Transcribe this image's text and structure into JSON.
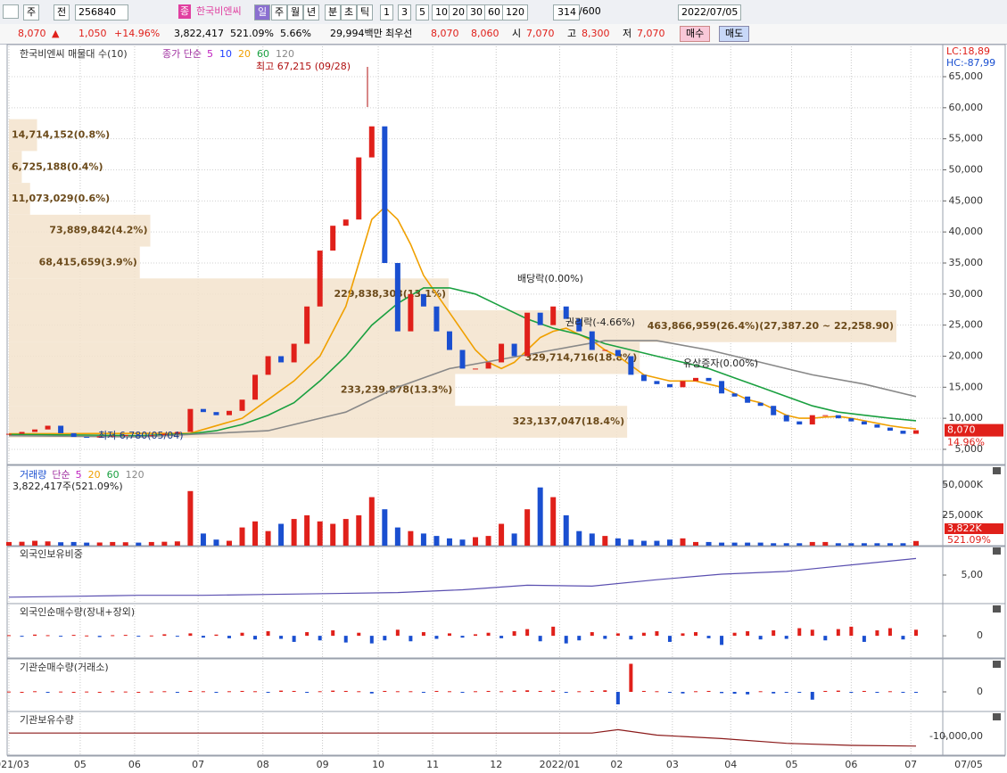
{
  "toolbar": {
    "market": "주",
    "prev": "전",
    "code": "256840",
    "jong": "종",
    "name": "한국비엔씨",
    "periods": [
      "일",
      "주",
      "월",
      "년",
      "분",
      "초",
      "틱"
    ],
    "intervals": [
      "1",
      "3",
      "5",
      "10",
      "20",
      "30",
      "60",
      "120"
    ],
    "count": "314",
    "max": "/600",
    "date": "2022/07/05"
  },
  "quote": {
    "price": "8,070",
    "arrow": "▲",
    "change": "1,050",
    "rate": "+14.96%",
    "volume": "3,822,417",
    "vol_ratio": "521.09%",
    "turnover": "5.66%",
    "amount": "29,994백만",
    "best": "최우선",
    "ask": "8,070",
    "bid": "8,060",
    "open_label": "시",
    "open": "7,070",
    "high_label": "고",
    "high": "8,300",
    "low_label": "저",
    "low": "7,070",
    "buy": "매수",
    "sell": "매도"
  },
  "chart_data": [
    {
      "type": "candlestick",
      "title": "한국비엔씨 매물대 수(10)",
      "legend_title": "종가 단순",
      "color_up": "#e0201a",
      "color_down": "#1a4fd0",
      "grid": true,
      "lc": "LC:18,89",
      "hc": "HC:-87,99",
      "last_label": "8,070",
      "last_rate": "14.96%",
      "values": [
        7500,
        7800,
        8200,
        8800,
        7600,
        7000,
        6900,
        7100,
        7200,
        7300,
        7200,
        7300,
        7500,
        7800,
        11500,
        11000,
        10500,
        11200,
        13000,
        17000,
        20000,
        19000,
        22000,
        28000,
        37000,
        41000,
        42000,
        52000,
        57000,
        35000,
        24000,
        30000,
        28000,
        24000,
        21000,
        18000,
        18000,
        19000,
        22000,
        20000,
        27000,
        25000,
        28000,
        26000,
        24000,
        21000,
        21000,
        20000,
        17000,
        16000,
        15500,
        15000,
        16000,
        16500,
        16000,
        14000,
        13500,
        12500,
        12000,
        10500,
        9500,
        9000,
        10500,
        10500,
        10000,
        9500,
        9000,
        8500,
        8000,
        7500,
        8070
      ],
      "ma_series": [
        {
          "name": "5",
          "color": "#c020c0"
        },
        {
          "name": "10",
          "color": "#2040ff"
        },
        {
          "name": "20",
          "color": "#f0a000",
          "x": [
            0,
            14,
            18,
            20,
            22,
            24,
            26,
            27,
            28,
            29,
            30,
            31,
            32,
            33,
            34,
            35,
            36,
            37,
            38,
            39,
            40,
            41,
            42,
            43,
            44,
            45,
            46,
            47,
            48,
            49,
            50,
            51,
            52,
            53,
            54,
            55,
            56,
            57,
            58,
            59,
            60,
            61,
            62,
            63,
            64,
            65,
            66,
            67,
            68,
            69,
            70
          ],
          "values": [
            7500,
            7600,
            10000,
            13000,
            16000,
            20000,
            28000,
            35000,
            42000,
            44000,
            42000,
            38000,
            33000,
            30000,
            27000,
            24000,
            21000,
            19000,
            18000,
            19000,
            21000,
            23000,
            24000,
            24500,
            23500,
            22500,
            21000,
            20000,
            18500,
            17000,
            16500,
            16000,
            16000,
            16000,
            15500,
            15000,
            14000,
            13000,
            12500,
            11500,
            10500,
            10000,
            10000,
            10200,
            10300,
            10000,
            9600,
            9200,
            8800,
            8500,
            8300
          ]
        },
        {
          "name": "60",
          "color": "#1aa040",
          "x": [
            0,
            6,
            10,
            14,
            16,
            18,
            20,
            22,
            24,
            26,
            28,
            30,
            32,
            34,
            36,
            38,
            40,
            42,
            44,
            46,
            48,
            50,
            52,
            54,
            56,
            58,
            60,
            62,
            64,
            66,
            68,
            70
          ],
          "values": [
            7400,
            7300,
            7200,
            7500,
            8000,
            9000,
            10500,
            12500,
            16000,
            20000,
            25000,
            28500,
            31000,
            31000,
            30000,
            28000,
            26000,
            24500,
            23500,
            22000,
            21000,
            20000,
            19000,
            18000,
            16500,
            15000,
            13500,
            12000,
            11000,
            10500,
            10000,
            9600
          ]
        },
        {
          "name": "120",
          "color": "#888888",
          "x": [
            0,
            10,
            20,
            26,
            30,
            34,
            38,
            42,
            46,
            50,
            54,
            58,
            62,
            66,
            70
          ],
          "values": [
            7200,
            7000,
            8000,
            11000,
            15000,
            18000,
            19500,
            21000,
            22500,
            22500,
            21000,
            19000,
            17000,
            15500,
            13500
          ]
        }
      ],
      "ylim": [
        2700,
        69880
      ],
      "yticks": [
        {
          "value": 65000,
          "label": "65,000"
        },
        {
          "value": 60000,
          "label": "60,000"
        },
        {
          "value": 55000,
          "label": "55,000"
        },
        {
          "value": 50000,
          "label": "50,000"
        },
        {
          "value": 45000,
          "label": "45,000"
        },
        {
          "value": 40000,
          "label": "40,000"
        },
        {
          "value": 35000,
          "label": "35,000"
        },
        {
          "value": 30000,
          "label": "30,000"
        },
        {
          "value": 25000,
          "label": "25,000"
        },
        {
          "value": 20000,
          "label": "20,000"
        },
        {
          "value": 15000,
          "label": "15,000"
        },
        {
          "value": 10000,
          "label": "10,000"
        },
        {
          "value": 5000,
          "label": "5,000"
        }
      ],
      "annotations": [
        {
          "text": "최고 67,215 (09/28)"
        },
        {
          "text": "최저 6,780(05/04)"
        },
        {
          "text": "배당락(0.00%)"
        },
        {
          "text": "권리락(-4.66%)"
        },
        {
          "text": "유상증자(0.00%)"
        }
      ],
      "volume_profile": [
        {
          "label": "14,714,152(0.8%)",
          "volume": 14714152,
          "low": 53028.7,
          "high": 58157.0
        },
        {
          "label": "6,725,188(0.4%)",
          "volume": 6725188,
          "low": 47900.4,
          "high": 53028.7
        },
        {
          "label": "11,073,029(0.6%)",
          "volume": 11073029,
          "low": 42772.1,
          "high": 47900.4
        },
        {
          "label": "73,889,842(4.2%)",
          "volume": 73889842,
          "low": 37643.8,
          "high": 42772.1
        },
        {
          "label": "68,415,659(3.9%)",
          "volume": 68415659,
          "low": 32515.5,
          "high": 37643.8
        },
        {
          "label": "229,838,303(13.1%)",
          "volume": 229838303,
          "low": 27387.2,
          "high": 32515.5
        },
        {
          "label": "463,866,959(26.4%)(27,387.20 ~ 22,258.90)",
          "volume": 463866959,
          "low": 22258.9,
          "high": 27387.2
        },
        {
          "label": "329,714,716(18.8%)",
          "volume": 329714716,
          "low": 17130.6,
          "high": 22258.9
        },
        {
          "label": "233,239,878(13.3%)",
          "volume": 233239878,
          "low": 12002.3,
          "high": 17130.6
        },
        {
          "label": "323,137,047(18.4%)",
          "volume": 323137047,
          "low": 6874.0,
          "high": 12002.3
        }
      ]
    },
    {
      "type": "volume",
      "title": "거래량",
      "legend_title": "단순",
      "legend": [
        {
          "name": "5",
          "color": "#c020c0"
        },
        {
          "name": "20",
          "color": "#f0a000"
        },
        {
          "name": "60",
          "color": "#1aa040"
        },
        {
          "name": "120",
          "color": "#888888"
        }
      ],
      "info": "3,822,417주(521.09%)",
      "last_label": "3,822K",
      "last_rate": "521.09%",
      "values": [
        3000,
        3200,
        4000,
        3500,
        2800,
        3000,
        2500,
        2600,
        3000,
        2800,
        2500,
        3000,
        3200,
        3500,
        45000,
        10000,
        5000,
        4000,
        15000,
        20000,
        12000,
        18000,
        22000,
        25000,
        20000,
        18000,
        22000,
        25000,
        40000,
        30000,
        15000,
        12000,
        10000,
        8000,
        6000,
        5000,
        7000,
        8000,
        18000,
        10000,
        30000,
        48000,
        40000,
        25000,
        12000,
        10000,
        8000,
        6000,
        5000,
        4000,
        4000,
        5000,
        6000,
        3000,
        3000,
        2500,
        2500,
        2500,
        2500,
        2000,
        2000,
        2000,
        3000,
        3000,
        2000,
        2000,
        2000,
        2000,
        2000,
        2000,
        3822
      ],
      "ylim": [
        0,
        64700
      ],
      "yticks": [
        {
          "value": 50000,
          "label": "50,000K"
        },
        {
          "value": 25000,
          "label": "25,000K"
        }
      ]
    },
    {
      "type": "line",
      "title": "외국인보유비중",
      "color": "#5a4fb0",
      "x": [
        0,
        5,
        10,
        15,
        20,
        25,
        30,
        35,
        40,
        45,
        50,
        55,
        60,
        65,
        70
      ],
      "values": [
        2.6,
        2.7,
        2.8,
        2.8,
        2.9,
        3.0,
        3.1,
        3.4,
        3.9,
        3.8,
        4.5,
        5.1,
        5.4,
        6.1,
        6.8
      ],
      "ylim": [
        2,
        8
      ],
      "yticks": [
        {
          "value": 5,
          "label": "5,00"
        }
      ]
    },
    {
      "type": "bar",
      "title": "외국인순매수량(장내+장외)",
      "color_up": "#e0201a",
      "color_down": "#1a4fd0",
      "values": [
        2,
        -3,
        4,
        2,
        -2,
        3,
        1,
        -4,
        2,
        3,
        -2,
        1,
        5,
        -3,
        8,
        -6,
        4,
        -8,
        10,
        -12,
        15,
        -10,
        -20,
        12,
        -15,
        18,
        -22,
        10,
        -25,
        -15,
        20,
        -18,
        12,
        -10,
        8,
        -6,
        5,
        10,
        -8,
        15,
        22,
        -18,
        30,
        -25,
        -15,
        12,
        -10,
        8,
        -12,
        10,
        15,
        -20,
        8,
        12,
        -8,
        -30,
        10,
        15,
        -12,
        18,
        -10,
        25,
        20,
        -15,
        22,
        30,
        -20,
        18,
        25,
        -12,
        20
      ],
      "ylim": [
        -70,
        100
      ],
      "yticks": [
        0
      ]
    },
    {
      "type": "bar",
      "title": "기관순매수량(거래소)",
      "color_up": "#e0201a",
      "color_down": "#1a4fd0",
      "values": [
        1,
        0,
        2,
        -1,
        1,
        0,
        1,
        0,
        2,
        1,
        0,
        1,
        2,
        -1,
        3,
        2,
        -2,
        2,
        3,
        2,
        -2,
        4,
        3,
        -3,
        2,
        4,
        3,
        2,
        -5,
        3,
        2,
        2,
        -2,
        3,
        2,
        -1,
        2,
        3,
        2,
        4,
        5,
        3,
        4,
        -3,
        2,
        3,
        5,
        -40,
        90,
        3,
        2,
        -3,
        -5,
        2,
        3,
        -4,
        -6,
        -8,
        2,
        -5,
        -3,
        -2,
        -25,
        3,
        4,
        -2,
        3,
        -3,
        2,
        -2,
        -3
      ],
      "ylim": [
        -60,
        100
      ],
      "yticks": [
        0
      ]
    },
    {
      "type": "line",
      "title": "기관보유수량",
      "color": "#8b1a1a",
      "x": [
        0,
        5,
        10,
        15,
        20,
        25,
        30,
        35,
        40,
        45,
        47,
        50,
        55,
        60,
        65,
        70
      ],
      "values": [
        -950000,
        -950000,
        -950000,
        -950000,
        -950000,
        -950000,
        -950000,
        -950000,
        -950000,
        -950000,
        -900000,
        -980000,
        -1030000,
        -1100000,
        -1130000,
        -1140000
      ],
      "ylim": [
        -1260000,
        -660000
      ],
      "yticks": [
        {
          "value": -1000000,
          "label": "-10,000,00"
        }
      ],
      "xlim": [
        0,
        70
      ],
      "xticks": [
        {
          "value": 0,
          "label": "2021/03"
        },
        {
          "value": 5.5,
          "label": "05"
        },
        {
          "value": 9.7,
          "label": "06"
        },
        {
          "value": 14.6,
          "label": "07"
        },
        {
          "value": 19.6,
          "label": "08"
        },
        {
          "value": 24.2,
          "label": "09"
        },
        {
          "value": 28.5,
          "label": "10"
        },
        {
          "value": 32.7,
          "label": "11"
        },
        {
          "value": 37.6,
          "label": "12"
        },
        {
          "value": 42.5,
          "label": "2022/01"
        },
        {
          "value": 46.9,
          "label": "02"
        },
        {
          "value": 51.2,
          "label": "03"
        },
        {
          "value": 55.7,
          "label": "04"
        },
        {
          "value": 60.4,
          "label": "05"
        },
        {
          "value": 65,
          "label": "06"
        },
        {
          "value": 69.6,
          "label": "07"
        }
      ],
      "x_end_label": "07/05"
    }
  ]
}
